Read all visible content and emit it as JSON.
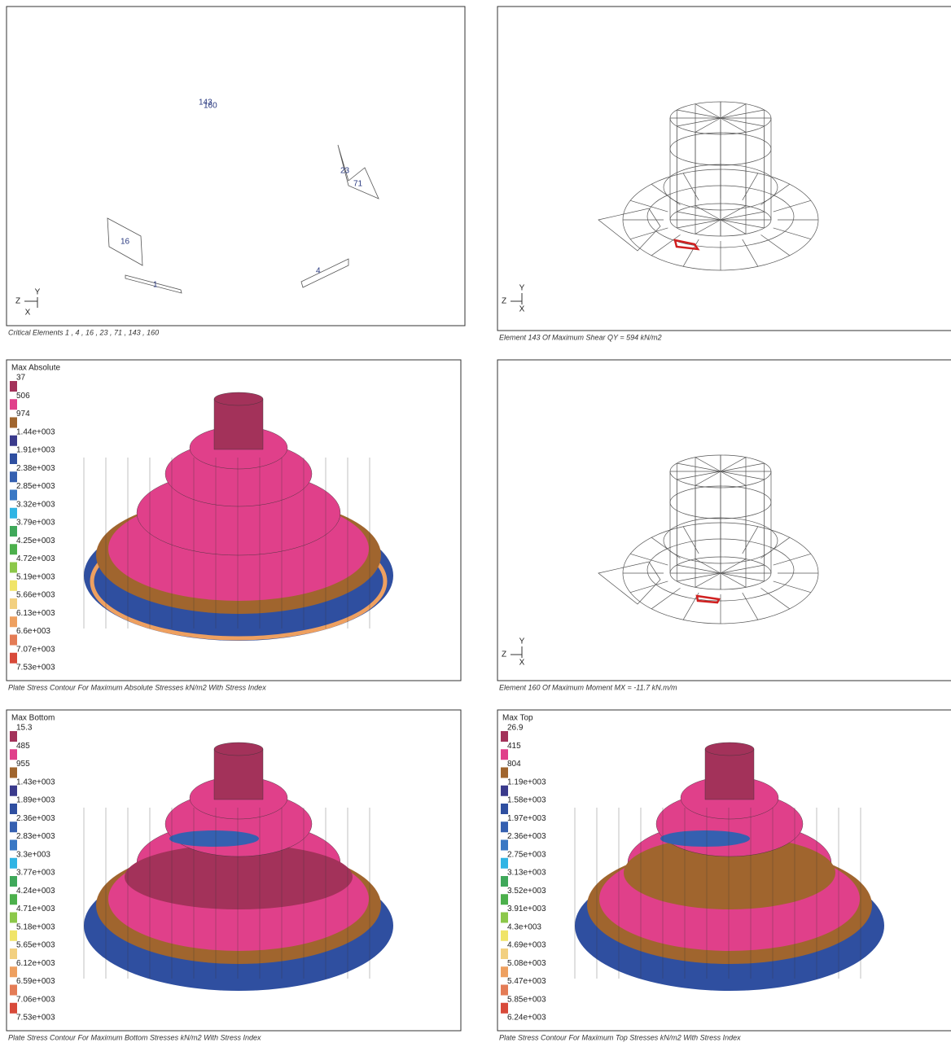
{
  "legend_colors": [
    "#a3325a",
    "#e0408a",
    "#a0652e",
    "#3a3a8c",
    "#2f4fa0",
    "#3560b0",
    "#3a78c4",
    "#30b4e4",
    "#3fa85a",
    "#4cb04c",
    "#8cc84a",
    "#f0e468",
    "#f2d080",
    "#eea060",
    "#e47c56",
    "#d84a3a"
  ],
  "panels": [
    {
      "caption": "Critical Elements 1 , 4 , 16 , 23 , 71 , 143 , 160",
      "element_labels": [
        "143",
        "160",
        "23",
        "71",
        "16",
        "1",
        "4"
      ],
      "axes": [
        "Z",
        "Y",
        "X"
      ]
    },
    {
      "caption": "Element 143 Of Maximum Shear QY = 594 kN/m2",
      "axes": [
        "Z",
        "Y",
        "X"
      ]
    },
    {
      "caption": "Plate Stress Contour For Maximum Absolute Stresses kN/m2 With Stress Index",
      "legend": {
        "title": "Max Absolute",
        "labels": [
          "37",
          "506",
          "974",
          "1.44e+003",
          "1.91e+003",
          "2.38e+003",
          "2.85e+003",
          "3.32e+003",
          "3.79e+003",
          "4.25e+003",
          "4.72e+003",
          "5.19e+003",
          "5.66e+003",
          "6.13e+003",
          "6.6e+003",
          "7.07e+003",
          "7.53e+003"
        ]
      }
    },
    {
      "caption": "Element 160 Of Maximum Moment MX = -11.7 kN.m/m",
      "axes": [
        "Z",
        "Y",
        "X"
      ]
    },
    {
      "caption": "Plate Stress Contour For Maximum Bottom Stresses kN/m2 With Stress Index",
      "legend": {
        "title": "Max Bottom",
        "labels": [
          "15.3",
          "485",
          "955",
          "1.43e+003",
          "1.89e+003",
          "2.36e+003",
          "2.83e+003",
          "3.3e+003",
          "3.77e+003",
          "4.24e+003",
          "4.71e+003",
          "5.18e+003",
          "5.65e+003",
          "6.12e+003",
          "6.59e+003",
          "7.06e+003",
          "7.53e+003"
        ]
      }
    },
    {
      "caption": "Plate Stress Contour For Maximum Top Stresses kN/m2 With Stress Index",
      "legend": {
        "title": "Max Top",
        "labels": [
          "26.9",
          "415",
          "804",
          "1.19e+003",
          "1.58e+003",
          "1.97e+003",
          "2.36e+003",
          "2.75e+003",
          "3.13e+003",
          "3.52e+003",
          "3.91e+003",
          "4.3e+003",
          "4.69e+003",
          "5.08e+003",
          "5.47e+003",
          "5.85e+003",
          "6.24e+003"
        ]
      }
    }
  ]
}
